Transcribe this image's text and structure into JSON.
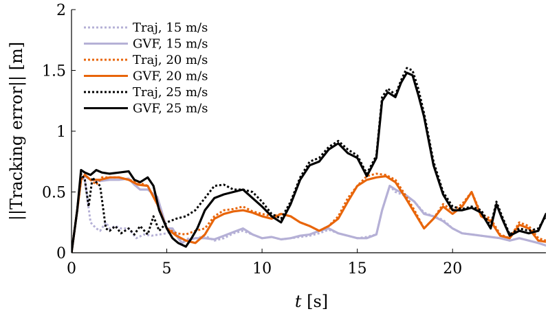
{
  "chart_data": {
    "type": "line",
    "title": "",
    "xlabel_var": "t",
    "xlabel_unit": " [s]",
    "ylabel": "||Tracking error|| [m]",
    "xlim": [
      0,
      24.9
    ],
    "ylim": [
      0,
      2
    ],
    "xticks": [
      0,
      5,
      10,
      15,
      20
    ],
    "xtick_labels": [
      "0",
      "5",
      "10",
      "15",
      "20"
    ],
    "yticks": [
      0,
      0.5,
      1,
      1.5,
      2
    ],
    "ytick_labels": [
      "0",
      "0.5",
      "1",
      "1.5",
      "2"
    ],
    "legend_position": "top-left",
    "colors": {
      "lavender": "#b5b0d6",
      "orange": "#e8650a",
      "black": "#000000"
    },
    "series": [
      {
        "name": "Traj, 15 m/s",
        "color": "#b5b0d6",
        "dash": "dotted",
        "x": [
          0.0,
          0.3,
          0.5,
          0.7,
          1.0,
          1.3,
          1.5,
          1.8,
          2.0,
          2.3,
          2.6,
          3.0,
          3.4,
          3.8,
          4.2,
          4.6,
          5.0,
          5.4,
          5.8,
          6.2,
          6.6,
          7.0,
          7.5,
          8.0,
          8.5,
          9.0,
          9.5,
          10.0,
          10.5,
          11.0,
          11.5,
          12.0,
          12.5,
          13.0,
          13.5,
          14.0,
          14.5,
          15.0,
          15.5,
          16.0,
          16.3,
          16.7,
          17.0,
          17.5,
          18.0,
          18.5,
          19.0,
          19.5,
          20.0,
          20.5,
          21.0,
          21.5,
          22.0,
          22.5,
          23.0,
          23.5,
          24.0,
          24.5,
          24.9
        ],
        "y": [
          0.0,
          0.35,
          0.62,
          0.6,
          0.25,
          0.2,
          0.18,
          0.25,
          0.2,
          0.22,
          0.2,
          0.2,
          0.12,
          0.15,
          0.14,
          0.15,
          0.16,
          0.18,
          0.1,
          0.12,
          0.12,
          0.14,
          0.1,
          0.12,
          0.16,
          0.18,
          0.15,
          0.12,
          0.13,
          0.11,
          0.12,
          0.13,
          0.14,
          0.16,
          0.19,
          0.16,
          0.14,
          0.12,
          0.13,
          0.15,
          0.35,
          0.55,
          0.5,
          0.47,
          0.42,
          0.33,
          0.3,
          0.27,
          0.2,
          0.16,
          0.15,
          0.14,
          0.13,
          0.12,
          0.1,
          0.12,
          0.1,
          0.08,
          0.06
        ]
      },
      {
        "name": "GVF, 15 m/s",
        "color": "#b5b0d6",
        "dash": "solid",
        "x": [
          0.0,
          0.3,
          0.5,
          0.7,
          1.0,
          1.5,
          2.0,
          2.5,
          3.0,
          3.3,
          3.6,
          4.0,
          4.5,
          5.0,
          5.3,
          5.6,
          5.8,
          6.0,
          6.5,
          7.0,
          7.5,
          8.0,
          8.5,
          9.0,
          9.5,
          10.0,
          10.5,
          11.0,
          11.5,
          12.0,
          12.5,
          13.0,
          13.5,
          14.0,
          14.5,
          15.0,
          15.5,
          16.0,
          16.3,
          16.7,
          17.0,
          17.5,
          18.0,
          18.5,
          19.0,
          19.5,
          20.0,
          20.5,
          21.0,
          21.5,
          22.0,
          22.5,
          23.0,
          23.5,
          24.0,
          24.5,
          24.9
        ],
        "y": [
          0.0,
          0.35,
          0.6,
          0.63,
          0.6,
          0.59,
          0.6,
          0.6,
          0.61,
          0.56,
          0.52,
          0.52,
          0.46,
          0.2,
          0.2,
          0.12,
          0.08,
          0.1,
          0.12,
          0.12,
          0.11,
          0.14,
          0.17,
          0.2,
          0.15,
          0.12,
          0.13,
          0.11,
          0.12,
          0.14,
          0.15,
          0.18,
          0.2,
          0.16,
          0.14,
          0.12,
          0.12,
          0.15,
          0.35,
          0.55,
          0.52,
          0.48,
          0.42,
          0.32,
          0.3,
          0.26,
          0.2,
          0.16,
          0.15,
          0.14,
          0.13,
          0.12,
          0.1,
          0.12,
          0.1,
          0.08,
          0.06
        ]
      },
      {
        "name": "Traj, 20 m/s",
        "color": "#e8650a",
        "dash": "dotted",
        "x": [
          0.0,
          0.3,
          0.5,
          0.7,
          1.0,
          1.3,
          1.6,
          2.0,
          2.5,
          3.0,
          3.5,
          4.0,
          4.5,
          5.0,
          5.5,
          6.0,
          6.5,
          7.0,
          7.5,
          8.0,
          8.5,
          9.0,
          9.5,
          10.0,
          10.5,
          11.0,
          11.5,
          12.0,
          12.5,
          13.0,
          13.5,
          14.0,
          14.5,
          15.0,
          15.5,
          16.0,
          16.5,
          17.0,
          17.5,
          18.0,
          18.5,
          19.0,
          19.5,
          20.0,
          20.5,
          21.0,
          21.5,
          22.0,
          22.5,
          23.0,
          23.5,
          24.0,
          24.5,
          24.9
        ],
        "y": [
          0.0,
          0.35,
          0.65,
          0.64,
          0.6,
          0.56,
          0.62,
          0.62,
          0.62,
          0.6,
          0.58,
          0.55,
          0.4,
          0.2,
          0.16,
          0.15,
          0.18,
          0.2,
          0.3,
          0.35,
          0.36,
          0.38,
          0.34,
          0.32,
          0.3,
          0.32,
          0.3,
          0.25,
          0.22,
          0.18,
          0.22,
          0.3,
          0.45,
          0.55,
          0.63,
          0.65,
          0.64,
          0.6,
          0.48,
          0.35,
          0.2,
          0.28,
          0.4,
          0.35,
          0.4,
          0.5,
          0.32,
          0.28,
          0.15,
          0.12,
          0.25,
          0.22,
          0.12,
          0.1
        ]
      },
      {
        "name": "GVF, 20 m/s",
        "color": "#e8650a",
        "dash": "solid",
        "x": [
          0.0,
          0.3,
          0.5,
          0.7,
          1.0,
          1.5,
          2.0,
          2.5,
          3.0,
          3.5,
          4.0,
          4.5,
          5.0,
          5.5,
          6.0,
          6.5,
          7.0,
          7.5,
          8.0,
          8.5,
          9.0,
          9.5,
          10.0,
          10.5,
          11.0,
          11.5,
          12.0,
          12.5,
          13.0,
          13.5,
          14.0,
          14.5,
          15.0,
          15.5,
          16.0,
          16.5,
          17.0,
          17.5,
          18.0,
          18.5,
          19.0,
          19.5,
          20.0,
          20.5,
          21.0,
          21.5,
          22.0,
          22.5,
          23.0,
          23.5,
          24.0,
          24.5,
          24.9
        ],
        "y": [
          0.0,
          0.35,
          0.6,
          0.64,
          0.6,
          0.6,
          0.62,
          0.62,
          0.6,
          0.56,
          0.55,
          0.4,
          0.2,
          0.14,
          0.1,
          0.08,
          0.15,
          0.28,
          0.32,
          0.34,
          0.35,
          0.33,
          0.3,
          0.28,
          0.32,
          0.3,
          0.25,
          0.22,
          0.18,
          0.22,
          0.28,
          0.42,
          0.55,
          0.6,
          0.62,
          0.63,
          0.58,
          0.46,
          0.33,
          0.2,
          0.28,
          0.38,
          0.32,
          0.38,
          0.5,
          0.3,
          0.26,
          0.14,
          0.12,
          0.23,
          0.2,
          0.1,
          0.09
        ]
      },
      {
        "name": "Traj, 25 m/s",
        "color": "#000000",
        "dash": "dotted",
        "x": [
          0.0,
          0.3,
          0.5,
          0.7,
          0.9,
          1.1,
          1.3,
          1.5,
          1.8,
          2.0,
          2.3,
          2.6,
          3.0,
          3.3,
          3.6,
          4.0,
          4.3,
          4.6,
          5.0,
          5.5,
          6.0,
          6.5,
          7.0,
          7.5,
          8.0,
          8.5,
          9.0,
          9.5,
          10.0,
          10.5,
          11.0,
          11.5,
          12.0,
          12.5,
          13.0,
          13.5,
          14.0,
          14.5,
          15.0,
          15.5,
          16.0,
          16.3,
          16.6,
          17.0,
          17.3,
          17.6,
          17.9,
          18.2,
          18.5,
          19.0,
          19.5,
          20.0,
          20.5,
          21.0,
          21.5,
          22.0,
          22.3,
          22.6,
          23.0,
          23.5,
          24.0,
          24.5,
          24.9
        ],
        "y": [
          0.0,
          0.35,
          0.65,
          0.6,
          0.38,
          0.62,
          0.58,
          0.55,
          0.2,
          0.18,
          0.22,
          0.16,
          0.2,
          0.15,
          0.22,
          0.15,
          0.3,
          0.18,
          0.25,
          0.28,
          0.3,
          0.35,
          0.45,
          0.55,
          0.56,
          0.52,
          0.52,
          0.5,
          0.42,
          0.32,
          0.28,
          0.42,
          0.62,
          0.75,
          0.78,
          0.87,
          0.92,
          0.85,
          0.8,
          0.65,
          0.8,
          1.28,
          1.35,
          1.3,
          1.42,
          1.52,
          1.5,
          1.35,
          1.15,
          0.75,
          0.5,
          0.38,
          0.36,
          0.38,
          0.35,
          0.22,
          0.42,
          0.3,
          0.15,
          0.2,
          0.18,
          0.2,
          0.3
        ]
      },
      {
        "name": "GVF, 25 m/s",
        "color": "#000000",
        "dash": "solid",
        "x": [
          0.0,
          0.3,
          0.5,
          0.7,
          1.0,
          1.3,
          1.6,
          2.0,
          2.5,
          3.0,
          3.3,
          3.6,
          4.0,
          4.3,
          4.6,
          5.0,
          5.3,
          5.6,
          6.0,
          6.3,
          6.6,
          7.0,
          7.5,
          8.0,
          8.5,
          9.0,
          9.5,
          10.0,
          10.5,
          11.0,
          11.5,
          12.0,
          12.5,
          13.0,
          13.5,
          14.0,
          14.5,
          15.0,
          15.5,
          16.0,
          16.3,
          16.6,
          17.0,
          17.3,
          17.6,
          17.9,
          18.2,
          18.5,
          19.0,
          19.5,
          20.0,
          20.5,
          21.0,
          21.5,
          22.0,
          22.3,
          22.6,
          23.0,
          23.5,
          24.0,
          24.5,
          24.9
        ],
        "y": [
          0.0,
          0.35,
          0.68,
          0.66,
          0.64,
          0.68,
          0.66,
          0.65,
          0.66,
          0.67,
          0.6,
          0.58,
          0.62,
          0.55,
          0.35,
          0.2,
          0.12,
          0.08,
          0.05,
          0.12,
          0.2,
          0.35,
          0.45,
          0.48,
          0.5,
          0.52,
          0.45,
          0.38,
          0.3,
          0.25,
          0.4,
          0.6,
          0.72,
          0.75,
          0.85,
          0.9,
          0.82,
          0.78,
          0.63,
          0.78,
          1.25,
          1.32,
          1.28,
          1.4,
          1.48,
          1.46,
          1.3,
          1.12,
          0.72,
          0.48,
          0.35,
          0.35,
          0.37,
          0.33,
          0.2,
          0.4,
          0.28,
          0.14,
          0.18,
          0.16,
          0.18,
          0.32
        ]
      }
    ]
  }
}
